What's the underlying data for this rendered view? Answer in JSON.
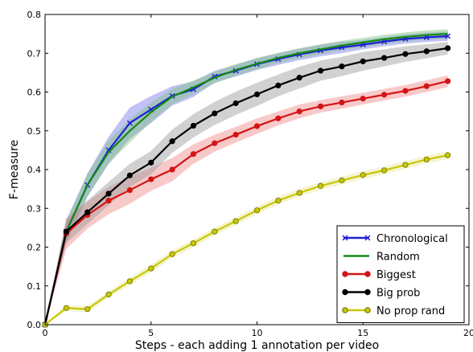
{
  "chart_data": {
    "type": "line",
    "title": "",
    "xlabel": "Steps - each adding 1 annotation per video",
    "ylabel": "F-measure",
    "xlim": [
      0,
      20
    ],
    "ylim": [
      0,
      0.8
    ],
    "xticks": [
      0,
      5,
      10,
      15,
      20
    ],
    "yticks": [
      0.0,
      0.1,
      0.2,
      0.3,
      0.4,
      0.5,
      0.6,
      0.7,
      0.8
    ],
    "xtick_labels": [
      "0",
      "5",
      "10",
      "15",
      "20"
    ],
    "ytick_labels": [
      "0.0",
      "0.1",
      "0.2",
      "0.3",
      "0.4",
      "0.5",
      "0.6",
      "0.7",
      "0.8"
    ],
    "grid": false,
    "legend_position": "lower-right",
    "x": [
      0,
      1,
      2,
      3,
      4,
      5,
      6,
      7,
      8,
      9,
      10,
      11,
      12,
      13,
      14,
      15,
      16,
      17,
      18,
      19
    ],
    "series": [
      {
        "name": "Chronological",
        "color": "#1f1fd6",
        "band_color": "#7878e8",
        "marker": "x",
        "values": [
          0.0,
          0.24,
          0.36,
          0.45,
          0.52,
          0.555,
          0.59,
          0.607,
          0.64,
          0.655,
          0.672,
          0.685,
          0.697,
          0.707,
          0.715,
          0.722,
          0.73,
          0.737,
          0.741,
          0.744
        ],
        "band": [
          0,
          0.03,
          0.03,
          0.035,
          0.04,
          0.035,
          0.025,
          0.02,
          0.015,
          0.015,
          0.015,
          0.015,
          0.015,
          0.015,
          0.015,
          0.012,
          0.012,
          0.012,
          0.012,
          0.012
        ]
      },
      {
        "name": "Random",
        "color": "#128a12",
        "band_color": "#7fc47f",
        "marker": "none",
        "values": [
          0.0,
          0.24,
          0.36,
          0.445,
          0.5,
          0.548,
          0.588,
          0.612,
          0.637,
          0.657,
          0.673,
          0.688,
          0.7,
          0.71,
          0.72,
          0.728,
          0.736,
          0.742,
          0.747,
          0.75
        ],
        "band": [
          0,
          0.025,
          0.03,
          0.03,
          0.03,
          0.025,
          0.02,
          0.018,
          0.015,
          0.015,
          0.015,
          0.013,
          0.013,
          0.013,
          0.012,
          0.012,
          0.012,
          0.012,
          0.012,
          0.012
        ]
      },
      {
        "name": "Biggest",
        "color": "#d41414",
        "band_color": "#f08888",
        "marker": "o",
        "values": [
          0.0,
          0.235,
          0.283,
          0.32,
          0.347,
          0.375,
          0.4,
          0.44,
          0.468,
          0.49,
          0.512,
          0.532,
          0.55,
          0.563,
          0.573,
          0.583,
          0.593,
          0.603,
          0.615,
          0.628
        ],
        "band": [
          0,
          0.04,
          0.035,
          0.035,
          0.035,
          0.03,
          0.03,
          0.025,
          0.022,
          0.02,
          0.02,
          0.018,
          0.018,
          0.016,
          0.016,
          0.015,
          0.015,
          0.015,
          0.015,
          0.015
        ]
      },
      {
        "name": "Big prob",
        "color": "#000000",
        "band_color": "#9a9a9a",
        "marker": "o",
        "values": [
          0.0,
          0.24,
          0.29,
          0.338,
          0.385,
          0.418,
          0.473,
          0.513,
          0.545,
          0.571,
          0.594,
          0.617,
          0.637,
          0.655,
          0.666,
          0.679,
          0.688,
          0.698,
          0.705,
          0.713
        ],
        "band": [
          0,
          0.03,
          0.03,
          0.03,
          0.03,
          0.03,
          0.03,
          0.03,
          0.03,
          0.03,
          0.03,
          0.028,
          0.028,
          0.026,
          0.025,
          0.024,
          0.022,
          0.02,
          0.018,
          0.016
        ]
      },
      {
        "name": "No prop rand",
        "color": "#c8c800",
        "band_color": "#e6e69a",
        "marker": "o",
        "values": [
          0.0,
          0.043,
          0.04,
          0.078,
          0.112,
          0.145,
          0.182,
          0.21,
          0.24,
          0.267,
          0.295,
          0.32,
          0.34,
          0.358,
          0.372,
          0.386,
          0.398,
          0.412,
          0.426,
          0.437
        ],
        "band": [
          0,
          0.008,
          0.008,
          0.008,
          0.01,
          0.01,
          0.01,
          0.01,
          0.01,
          0.01,
          0.01,
          0.01,
          0.01,
          0.01,
          0.01,
          0.01,
          0.01,
          0.01,
          0.01,
          0.01
        ]
      }
    ]
  }
}
